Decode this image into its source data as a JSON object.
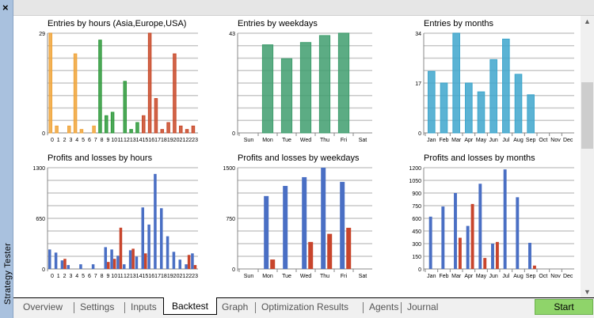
{
  "window": {
    "side_title": "Strategy Tester",
    "close_icon": "close-icon"
  },
  "tabs": [
    {
      "label": "Overview"
    },
    {
      "label": "Settings"
    },
    {
      "label": "Inputs"
    },
    {
      "label": "Backtest",
      "active": true
    },
    {
      "label": "Graph"
    },
    {
      "label": "Optimization Results"
    },
    {
      "label": "Agents"
    },
    {
      "label": "Journal"
    }
  ],
  "start_button": {
    "label": "Start",
    "color": "#8fd46a"
  },
  "chart_data": [
    {
      "id": "entries-hours",
      "type": "bar",
      "title": "Entries by hours (Asia,Europe,USA)",
      "ylim": [
        0,
        29
      ],
      "yticks": [
        "0",
        "29"
      ],
      "categories": [
        "0",
        "1",
        "2",
        "3",
        "4",
        "5",
        "6",
        "7",
        "8",
        "9",
        "10",
        "11",
        "12",
        "13",
        "14",
        "15",
        "16",
        "17",
        "18",
        "19",
        "20",
        "21",
        "22",
        "23"
      ],
      "values": [
        29,
        2,
        0,
        2,
        23,
        1,
        0,
        2,
        27,
        5,
        6,
        0,
        15,
        1,
        3,
        5,
        29,
        10,
        1,
        3,
        23,
        2,
        1,
        2
      ],
      "session_colors": {
        "Asia": "#f0a43a",
        "Europe": "#2f9a3c",
        "USA": "#c94a2a"
      }
    },
    {
      "id": "entries-weekdays",
      "type": "bar",
      "title": "Entries by weekdays",
      "ylim": [
        0,
        43
      ],
      "yticks": [
        "0",
        "43"
      ],
      "categories": [
        "Sun",
        "Mon",
        "Tue",
        "Wed",
        "Thu",
        "Fri",
        "Sat"
      ],
      "values": [
        0,
        38,
        32,
        39,
        42,
        43,
        0
      ],
      "color": "#3f9e6e"
    },
    {
      "id": "entries-months",
      "type": "bar",
      "title": "Entries by months",
      "ylim": [
        0,
        34
      ],
      "yticks": [
        "0",
        "17",
        "34"
      ],
      "categories": [
        "Jan",
        "Feb",
        "Mar",
        "Apr",
        "May",
        "Jun",
        "Jul",
        "Aug",
        "Sep",
        "Oct",
        "Nov",
        "Dec"
      ],
      "values": [
        21,
        17,
        34,
        17,
        14,
        25,
        32,
        20,
        13,
        0,
        0,
        0
      ],
      "color": "#3ea6cc"
    },
    {
      "id": "pl-hours",
      "type": "bar",
      "title": "Profits and losses by hours",
      "ylim": [
        0,
        1300
      ],
      "yticks": [
        "0",
        "650",
        "1300"
      ],
      "categories": [
        "0",
        "1",
        "2",
        "3",
        "4",
        "5",
        "6",
        "7",
        "8",
        "9",
        "10",
        "11",
        "12",
        "13",
        "14",
        "15",
        "16",
        "17",
        "18",
        "19",
        "20",
        "21",
        "22",
        "23"
      ],
      "series": [
        {
          "values": [
            250,
            210,
            110,
            50,
            0,
            60,
            0,
            60,
            0,
            280,
            250,
            170,
            60,
            240,
            160,
            790,
            570,
            1220,
            780,
            420,
            220,
            120,
            60,
            200
          ],
          "color": "#4a6fc4"
        },
        {
          "values": [
            0,
            0,
            130,
            0,
            0,
            0,
            0,
            0,
            0,
            90,
            130,
            530,
            0,
            260,
            0,
            200,
            0,
            0,
            0,
            0,
            0,
            0,
            180,
            50
          ],
          "color": "#c8452c"
        }
      ]
    },
    {
      "id": "pl-weekdays",
      "type": "bar",
      "title": "Profits and losses by weekdays",
      "ylim": [
        0,
        1500
      ],
      "yticks": [
        "0",
        "750",
        "1500"
      ],
      "categories": [
        "Sun",
        "Mon",
        "Tue",
        "Wed",
        "Thu",
        "Fri",
        "Sat"
      ],
      "series": [
        {
          "values": [
            0,
            1080,
            1230,
            1360,
            1500,
            1290,
            0
          ],
          "color": "#4a6fc4"
        },
        {
          "values": [
            0,
            140,
            0,
            400,
            520,
            610,
            0
          ],
          "color": "#c8452c"
        }
      ]
    },
    {
      "id": "pl-months",
      "type": "bar",
      "title": "Profits and losses by months",
      "ylim": [
        0,
        1200
      ],
      "yticks": [
        "0",
        "150",
        "300",
        "450",
        "600",
        "750",
        "900",
        "1050",
        "1200"
      ],
      "categories": [
        "Jan",
        "Feb",
        "Mar",
        "Apr",
        "May",
        "Jun",
        "Jul",
        "Aug",
        "Sep",
        "Oct",
        "Nov",
        "Dec"
      ],
      "series": [
        {
          "values": [
            620,
            740,
            900,
            510,
            1010,
            300,
            1180,
            850,
            310,
            0,
            0,
            0
          ],
          "color": "#4a6fc4"
        },
        {
          "values": [
            0,
            0,
            370,
            770,
            130,
            320,
            0,
            0,
            40,
            0,
            0,
            0
          ],
          "color": "#c8452c"
        }
      ]
    }
  ]
}
